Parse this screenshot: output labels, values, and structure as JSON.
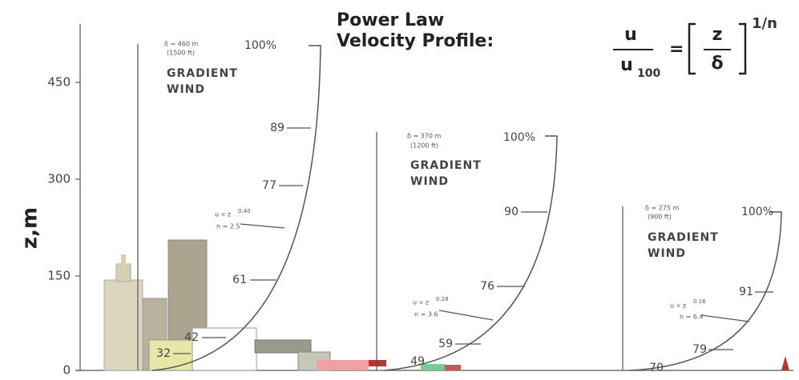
{
  "title": {
    "line1": "Power Law",
    "line2": "Velocity Profile:",
    "formula": {
      "numerator": "u",
      "denominator": "u",
      "subscript": "100",
      "equals": "=",
      "ratio_top": "z",
      "ratio_bottom": "δ",
      "exponent": "1/n"
    }
  },
  "axis": {
    "label": "z,m",
    "ticks": [
      "0",
      "150",
      "300",
      "450"
    ]
  },
  "profiles": [
    {
      "height": "δ = 460 m",
      "height_ft": "(1500 ft)",
      "gradient": [
        "GRADIENT",
        "WIND"
      ],
      "law": "u ∝ z",
      "exponent": "0.40",
      "n": "n = 2.5",
      "labels": [
        "100%",
        "89",
        "77",
        "61",
        "42",
        "32"
      ]
    },
    {
      "height": "δ = 370 m",
      "height_ft": "(1200 ft)",
      "gradient": [
        "GRADIENT",
        "WIND"
      ],
      "law": "u ∝ z",
      "exponent": "0.28",
      "n": "n = 3.6",
      "labels": [
        "100%",
        "90",
        "76",
        "59",
        "49"
      ]
    },
    {
      "height": "δ = 275 m",
      "height_ft": "(900 ft)",
      "gradient": [
        "GRADIENT",
        "WIND"
      ],
      "law": "u ∝ z",
      "exponent": "0.16",
      "n": "n = 6.4",
      "labels": [
        "100%",
        "91",
        "79",
        "70"
      ]
    }
  ]
}
